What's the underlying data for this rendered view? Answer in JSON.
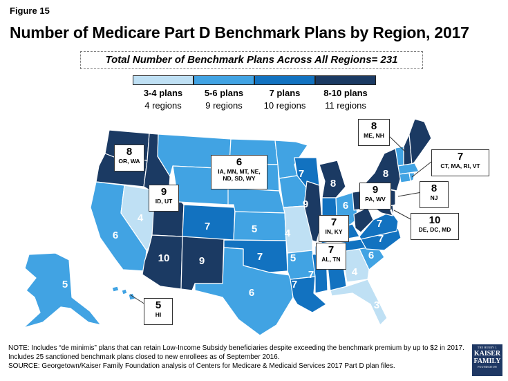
{
  "figure_label": "Figure 15",
  "title": "Number of Medicare Part D Benchmark Plans by Region, 2017",
  "total_banner": "Total Number of Benchmark Plans Across All Regions= 231",
  "colors": {
    "c34": "#bfe0f4",
    "c56": "#41a3e3",
    "c7": "#1272c0",
    "c810": "#1b3a63",
    "state_border": "#ffffff"
  },
  "legend": [
    {
      "label": "3-4 plans",
      "sub": "4 regions",
      "color": "#bfe0f4"
    },
    {
      "label": "5-6 plans",
      "sub": "9 regions",
      "color": "#41a3e3"
    },
    {
      "label": "7 plans",
      "sub": "10 regions",
      "color": "#1272c0"
    },
    {
      "label": "8-10 plans",
      "sub": "11 regions",
      "color": "#1b3a63"
    }
  ],
  "map_labels": [
    {
      "id": "ca",
      "value": "6"
    },
    {
      "id": "nv",
      "value": "4"
    },
    {
      "id": "az",
      "value": "10"
    },
    {
      "id": "nm",
      "value": "9"
    },
    {
      "id": "co",
      "value": "7"
    },
    {
      "id": "ks",
      "value": "5"
    },
    {
      "id": "ok",
      "value": "7"
    },
    {
      "id": "tx",
      "value": "6"
    },
    {
      "id": "mo",
      "value": "4"
    },
    {
      "id": "ar",
      "value": "5"
    },
    {
      "id": "la",
      "value": "7"
    },
    {
      "id": "ms",
      "value": "7"
    },
    {
      "id": "ga",
      "value": "4"
    },
    {
      "id": "fl",
      "value": "3"
    },
    {
      "id": "sc",
      "value": "6"
    },
    {
      "id": "nc",
      "value": "7"
    },
    {
      "id": "va",
      "value": "7"
    },
    {
      "id": "oh",
      "value": "6"
    },
    {
      "id": "il",
      "value": "9"
    },
    {
      "id": "wi",
      "value": "7"
    },
    {
      "id": "mi",
      "value": "8"
    },
    {
      "id": "ny",
      "value": "8"
    },
    {
      "id": "ak",
      "value": "5"
    }
  ],
  "callouts": [
    {
      "id": "orwa",
      "value": "8",
      "states": "OR, WA"
    },
    {
      "id": "idut",
      "value": "9",
      "states": "ID, UT"
    },
    {
      "id": "north",
      "value": "6",
      "states": "IA, MN, MT, NE,\nND, SD, WY"
    },
    {
      "id": "inky",
      "value": "7",
      "states": "IN, KY"
    },
    {
      "id": "altn",
      "value": "7",
      "states": "AL, TN"
    },
    {
      "id": "pawv",
      "value": "9",
      "states": "PA, WV"
    },
    {
      "id": "menh",
      "value": "8",
      "states": "ME, NH"
    },
    {
      "id": "ne",
      "value": "7",
      "states": "CT, MA, RI, VT"
    },
    {
      "id": "nj",
      "value": "8",
      "states": "NJ"
    },
    {
      "id": "dcmd",
      "value": "10",
      "states": "DE, DC, MD"
    },
    {
      "id": "hi",
      "value": "5",
      "states": "HI"
    }
  ],
  "notes": "NOTE: Includes “de minimis” plans that can retain Low-Income Subsidy beneficiaries despite exceeding the benchmark premium by up to $2 in 2017. Includes 25 sanctioned benchmark plans closed to new enrollees as of September 2016.",
  "source": "SOURCE: Georgetown/Kaiser Family Foundation analysis of Centers for Medicare & Medicaid Services 2017 Part D plan files.",
  "logo": {
    "line1": "THE HENRY J.",
    "line2": "KAISER\nFAMILY",
    "line3": "FOUNDATION"
  }
}
